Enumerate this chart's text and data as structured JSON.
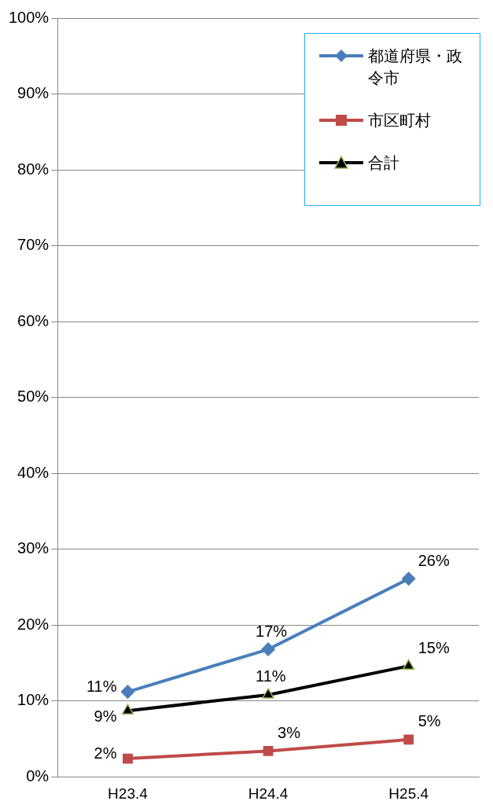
{
  "chart_data": {
    "type": "line",
    "categories": [
      "H23.4",
      "H24.4",
      "H25.4"
    ],
    "series": [
      {
        "name": "都道府県・政令市",
        "color": "#4a7ebb",
        "marker": "diamond",
        "values": [
          11.2,
          16.8,
          26.1
        ],
        "value_labels": [
          "11%",
          "17%",
          "26%"
        ]
      },
      {
        "name": "市区町村",
        "color": "#be4b48",
        "marker": "square",
        "values": [
          2.4,
          3.4,
          4.9
        ],
        "value_labels": [
          "2%",
          "3%",
          "5%"
        ]
      },
      {
        "name": "合計",
        "color": "#000000",
        "marker": "triangle",
        "values": [
          8.7,
          10.8,
          14.6
        ],
        "value_labels": [
          "9%",
          "11%",
          "15%"
        ]
      }
    ],
    "ylim": [
      0,
      100
    ],
    "yticks": [
      {
        "value": 0,
        "label": "0%"
      },
      {
        "value": 10,
        "label": "10%"
      },
      {
        "value": 20,
        "label": "20%"
      },
      {
        "value": 30,
        "label": "30%"
      },
      {
        "value": 40,
        "label": "40%"
      },
      {
        "value": 50,
        "label": "50%"
      },
      {
        "value": 60,
        "label": "60%"
      },
      {
        "value": 70,
        "label": "70%"
      },
      {
        "value": 80,
        "label": "80%"
      },
      {
        "value": 90,
        "label": "90%"
      },
      {
        "value": 100,
        "label": "100%"
      }
    ],
    "grid": "y",
    "legend": "top right"
  }
}
